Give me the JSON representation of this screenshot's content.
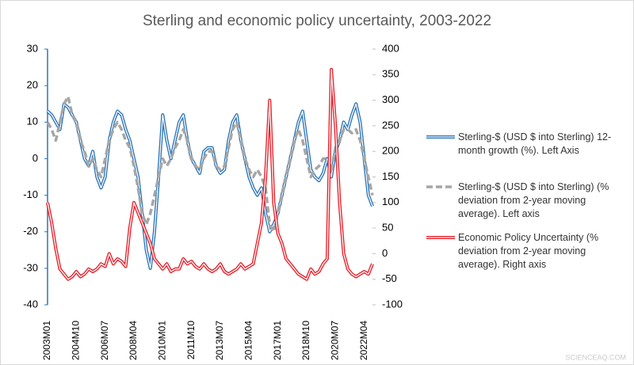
{
  "chart_data": {
    "type": "line",
    "title": "Sterling and economic policy uncertainty, 2003-2022",
    "watermark": "SCIENCEAQ.COM",
    "categories": [
      "2003M01",
      null,
      null,
      null,
      null,
      null,
      null,
      "2004M10",
      null,
      null,
      null,
      null,
      null,
      null,
      "2006M07",
      null,
      null,
      null,
      null,
      null,
      null,
      "2008M04",
      null,
      null,
      null,
      null,
      null,
      null,
      "2010M01",
      null,
      null,
      null,
      null,
      null,
      null,
      "2011M10",
      null,
      null,
      null,
      null,
      null,
      null,
      "2013M07",
      null,
      null,
      null,
      null,
      null,
      null,
      "2015M04",
      null,
      null,
      null,
      null,
      null,
      null,
      "2017M01",
      null,
      null,
      null,
      null,
      null,
      null,
      "2018M10",
      null,
      null,
      null,
      null,
      null,
      null,
      "2020M07",
      null,
      null,
      null,
      null,
      null,
      null,
      "2022M04",
      null,
      null
    ],
    "ylim": [
      -40,
      30
    ],
    "yticks": [
      -40,
      -30,
      -20,
      -10,
      0,
      10,
      20,
      30
    ],
    "y2lim": [
      -100,
      400
    ],
    "y2ticks": [
      -100,
      -50,
      0,
      50,
      100,
      150,
      200,
      250,
      300,
      350,
      400
    ],
    "series": [
      {
        "name": "Sterling-$ (USD $ into Sterling) 12-month growth (%). Left Axis",
        "color": "#2e75b6",
        "style": "double",
        "values": [
          13,
          12,
          10,
          8,
          15,
          14,
          12,
          10,
          5,
          0,
          -2,
          2,
          -5,
          -8,
          -5,
          5,
          10,
          13,
          12,
          8,
          5,
          0,
          -5,
          -15,
          -25,
          -30,
          -20,
          -5,
          12,
          5,
          0,
          5,
          10,
          12,
          5,
          0,
          -2,
          -4,
          2,
          3,
          3,
          -2,
          -4,
          -3,
          5,
          10,
          12,
          5,
          0,
          -5,
          -8,
          -10,
          -8,
          -15,
          -20,
          -18,
          -15,
          -10,
          -5,
          0,
          5,
          10,
          13,
          5,
          -3,
          -5,
          -6,
          -4,
          0,
          -5,
          2,
          5,
          10,
          8,
          12,
          15,
          10,
          0,
          -10,
          -13
        ]
      },
      {
        "name": "Sterling-$ (USD $ into Sterling) (% deviation from 2-year moving average). Left axis",
        "color": "#a6a6a6",
        "style": "dashed",
        "values": [
          10,
          8,
          5,
          10,
          15,
          17,
          12,
          10,
          5,
          2,
          -2,
          0,
          -3,
          -5,
          0,
          5,
          8,
          10,
          8,
          5,
          3,
          -2,
          -8,
          -15,
          -18,
          -15,
          -10,
          -5,
          0,
          -2,
          0,
          3,
          5,
          8,
          5,
          0,
          -2,
          -3,
          0,
          2,
          2,
          -2,
          -3,
          -2,
          3,
          8,
          10,
          5,
          0,
          -3,
          -5,
          -3,
          -5,
          -8,
          -18,
          -20,
          -15,
          -10,
          -5,
          0,
          5,
          8,
          5,
          0,
          -5,
          -3,
          -2,
          0,
          0,
          -3,
          3,
          5,
          8,
          8,
          7,
          8,
          5,
          0,
          -5,
          -10
        ]
      },
      {
        "name": "Economic Policy Uncertainty (% deviation from 2-year moving average). Right axis",
        "color": "#e8202a",
        "style": "double",
        "axis": "y2",
        "values": [
          100,
          60,
          10,
          -30,
          -40,
          -50,
          -45,
          -35,
          -45,
          -40,
          -30,
          -35,
          -30,
          -20,
          -25,
          0,
          -20,
          -10,
          -15,
          -25,
          50,
          100,
          80,
          60,
          40,
          20,
          -10,
          -20,
          -30,
          -20,
          -35,
          -30,
          -30,
          -10,
          -20,
          -15,
          -25,
          -30,
          -20,
          -30,
          -35,
          -30,
          -20,
          -35,
          -40,
          -35,
          -30,
          -20,
          -30,
          -25,
          -20,
          20,
          60,
          150,
          300,
          100,
          40,
          20,
          -10,
          -20,
          -30,
          -40,
          -45,
          -50,
          -30,
          -40,
          -35,
          -20,
          -10,
          360,
          250,
          100,
          0,
          -30,
          -40,
          -45,
          -40,
          -35,
          -40,
          -20
        ]
      }
    ]
  }
}
